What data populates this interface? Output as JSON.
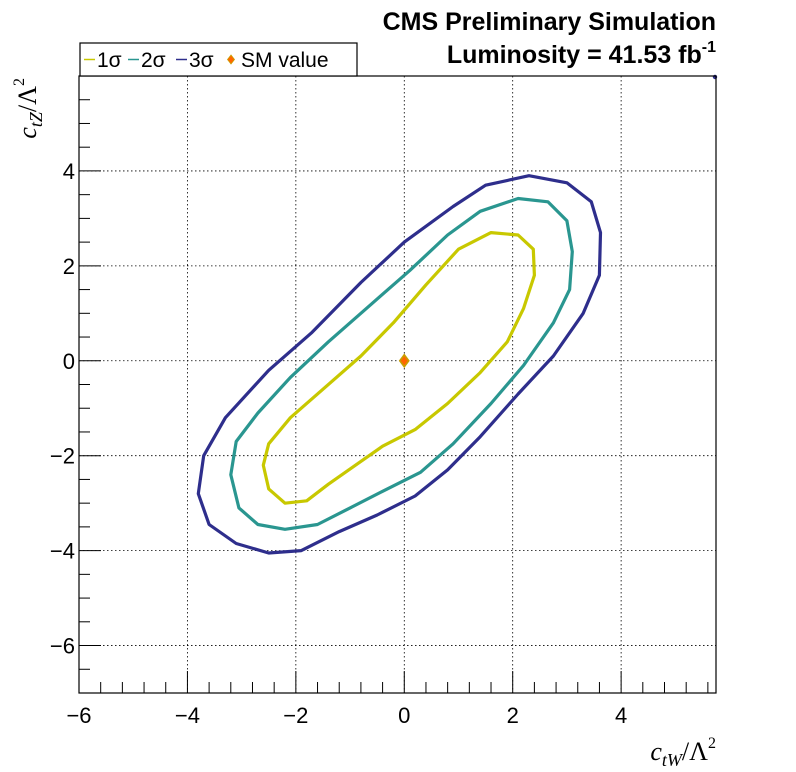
{
  "header": {
    "line1": "CMS Preliminary Simulation",
    "lumi_prefix": "Luminosity = 41.53 fb",
    "lumi_exponent": "-1"
  },
  "chart_data": {
    "type": "line",
    "xlim": [
      -6,
      5.75
    ],
    "ylim": [
      -7,
      6
    ],
    "grid": true,
    "legend_position": "top-left",
    "x_axis_title": {
      "main": "c",
      "sub": "tW",
      "divider": "/Λ",
      "sup": "2"
    },
    "y_axis_title": {
      "main": "c",
      "sub": "tZ",
      "divider": "/Λ",
      "sup": "2"
    },
    "x_ticks": [
      -6,
      -4,
      -2,
      0,
      2,
      4
    ],
    "x_tick_labels": [
      "−6",
      "−4",
      "−2",
      "0",
      "2",
      "4"
    ],
    "y_ticks": [
      -6,
      -4,
      -2,
      0,
      2,
      4
    ],
    "y_tick_labels": [
      "−6",
      "−4",
      "−2",
      "0",
      "2",
      "4"
    ],
    "series": [
      {
        "name": "1σ",
        "legend_label": "1σ",
        "color": "#c8c800",
        "points": [
          [
            -2.6,
            -2.2
          ],
          [
            -2.5,
            -2.7
          ],
          [
            -2.2,
            -3.0
          ],
          [
            -1.8,
            -2.95
          ],
          [
            -1.4,
            -2.6
          ],
          [
            -0.9,
            -2.2
          ],
          [
            -0.4,
            -1.8
          ],
          [
            0.2,
            -1.45
          ],
          [
            0.8,
            -0.9
          ],
          [
            1.4,
            -0.25
          ],
          [
            1.9,
            0.4
          ],
          [
            2.2,
            1.1
          ],
          [
            2.4,
            1.8
          ],
          [
            2.38,
            2.35
          ],
          [
            2.1,
            2.65
          ],
          [
            1.6,
            2.7
          ],
          [
            1.0,
            2.35
          ],
          [
            0.4,
            1.6
          ],
          [
            -0.2,
            0.8
          ],
          [
            -0.8,
            0.1
          ],
          [
            -1.5,
            -0.6
          ],
          [
            -2.1,
            -1.2
          ],
          [
            -2.5,
            -1.75
          ],
          [
            -2.6,
            -2.2
          ]
        ]
      },
      {
        "name": "2σ",
        "legend_label": "2σ",
        "color": "#2a9690",
        "points": [
          [
            -3.2,
            -2.4
          ],
          [
            -3.05,
            -3.1
          ],
          [
            -2.7,
            -3.45
          ],
          [
            -2.2,
            -3.55
          ],
          [
            -1.6,
            -3.45
          ],
          [
            -1.0,
            -3.1
          ],
          [
            -0.4,
            -2.75
          ],
          [
            0.3,
            -2.35
          ],
          [
            0.9,
            -1.75
          ],
          [
            1.6,
            -0.9
          ],
          [
            2.2,
            -0.1
          ],
          [
            2.75,
            0.8
          ],
          [
            3.05,
            1.5
          ],
          [
            3.1,
            2.3
          ],
          [
            3.0,
            2.95
          ],
          [
            2.65,
            3.35
          ],
          [
            2.1,
            3.42
          ],
          [
            1.4,
            3.15
          ],
          [
            0.8,
            2.65
          ],
          [
            0.1,
            1.9
          ],
          [
            -0.6,
            1.2
          ],
          [
            -1.4,
            0.4
          ],
          [
            -2.1,
            -0.35
          ],
          [
            -2.7,
            -1.1
          ],
          [
            -3.1,
            -1.7
          ],
          [
            -3.2,
            -2.4
          ]
        ]
      },
      {
        "name": "3σ",
        "legend_label": "3σ",
        "color": "#2e2e8c",
        "points": [
          [
            -3.8,
            -2.8
          ],
          [
            -3.6,
            -3.45
          ],
          [
            -3.1,
            -3.85
          ],
          [
            -2.5,
            -4.05
          ],
          [
            -1.9,
            -4.0
          ],
          [
            -1.2,
            -3.6
          ],
          [
            -0.5,
            -3.25
          ],
          [
            0.2,
            -2.85
          ],
          [
            0.8,
            -2.3
          ],
          [
            1.4,
            -1.6
          ],
          [
            2.1,
            -0.7
          ],
          [
            2.75,
            0.1
          ],
          [
            3.3,
            1.0
          ],
          [
            3.6,
            1.8
          ],
          [
            3.62,
            2.7
          ],
          [
            3.45,
            3.35
          ],
          [
            3.0,
            3.75
          ],
          [
            2.3,
            3.9
          ],
          [
            1.5,
            3.7
          ],
          [
            0.9,
            3.25
          ],
          [
            0.0,
            2.5
          ],
          [
            -0.8,
            1.65
          ],
          [
            -1.7,
            0.6
          ],
          [
            -2.5,
            -0.2
          ],
          [
            -3.3,
            -1.2
          ],
          [
            -3.7,
            -2.0
          ],
          [
            -3.8,
            -2.8
          ]
        ]
      }
    ],
    "reference_points": [
      {
        "name": "SM value",
        "legend_label": "SM value",
        "x": 0,
        "y": 0,
        "fill": "#ff6600",
        "edge": "#c8a000"
      }
    ],
    "corner_marker": {
      "x": 5.75,
      "y": 6,
      "color": "#2e2e8c"
    }
  }
}
